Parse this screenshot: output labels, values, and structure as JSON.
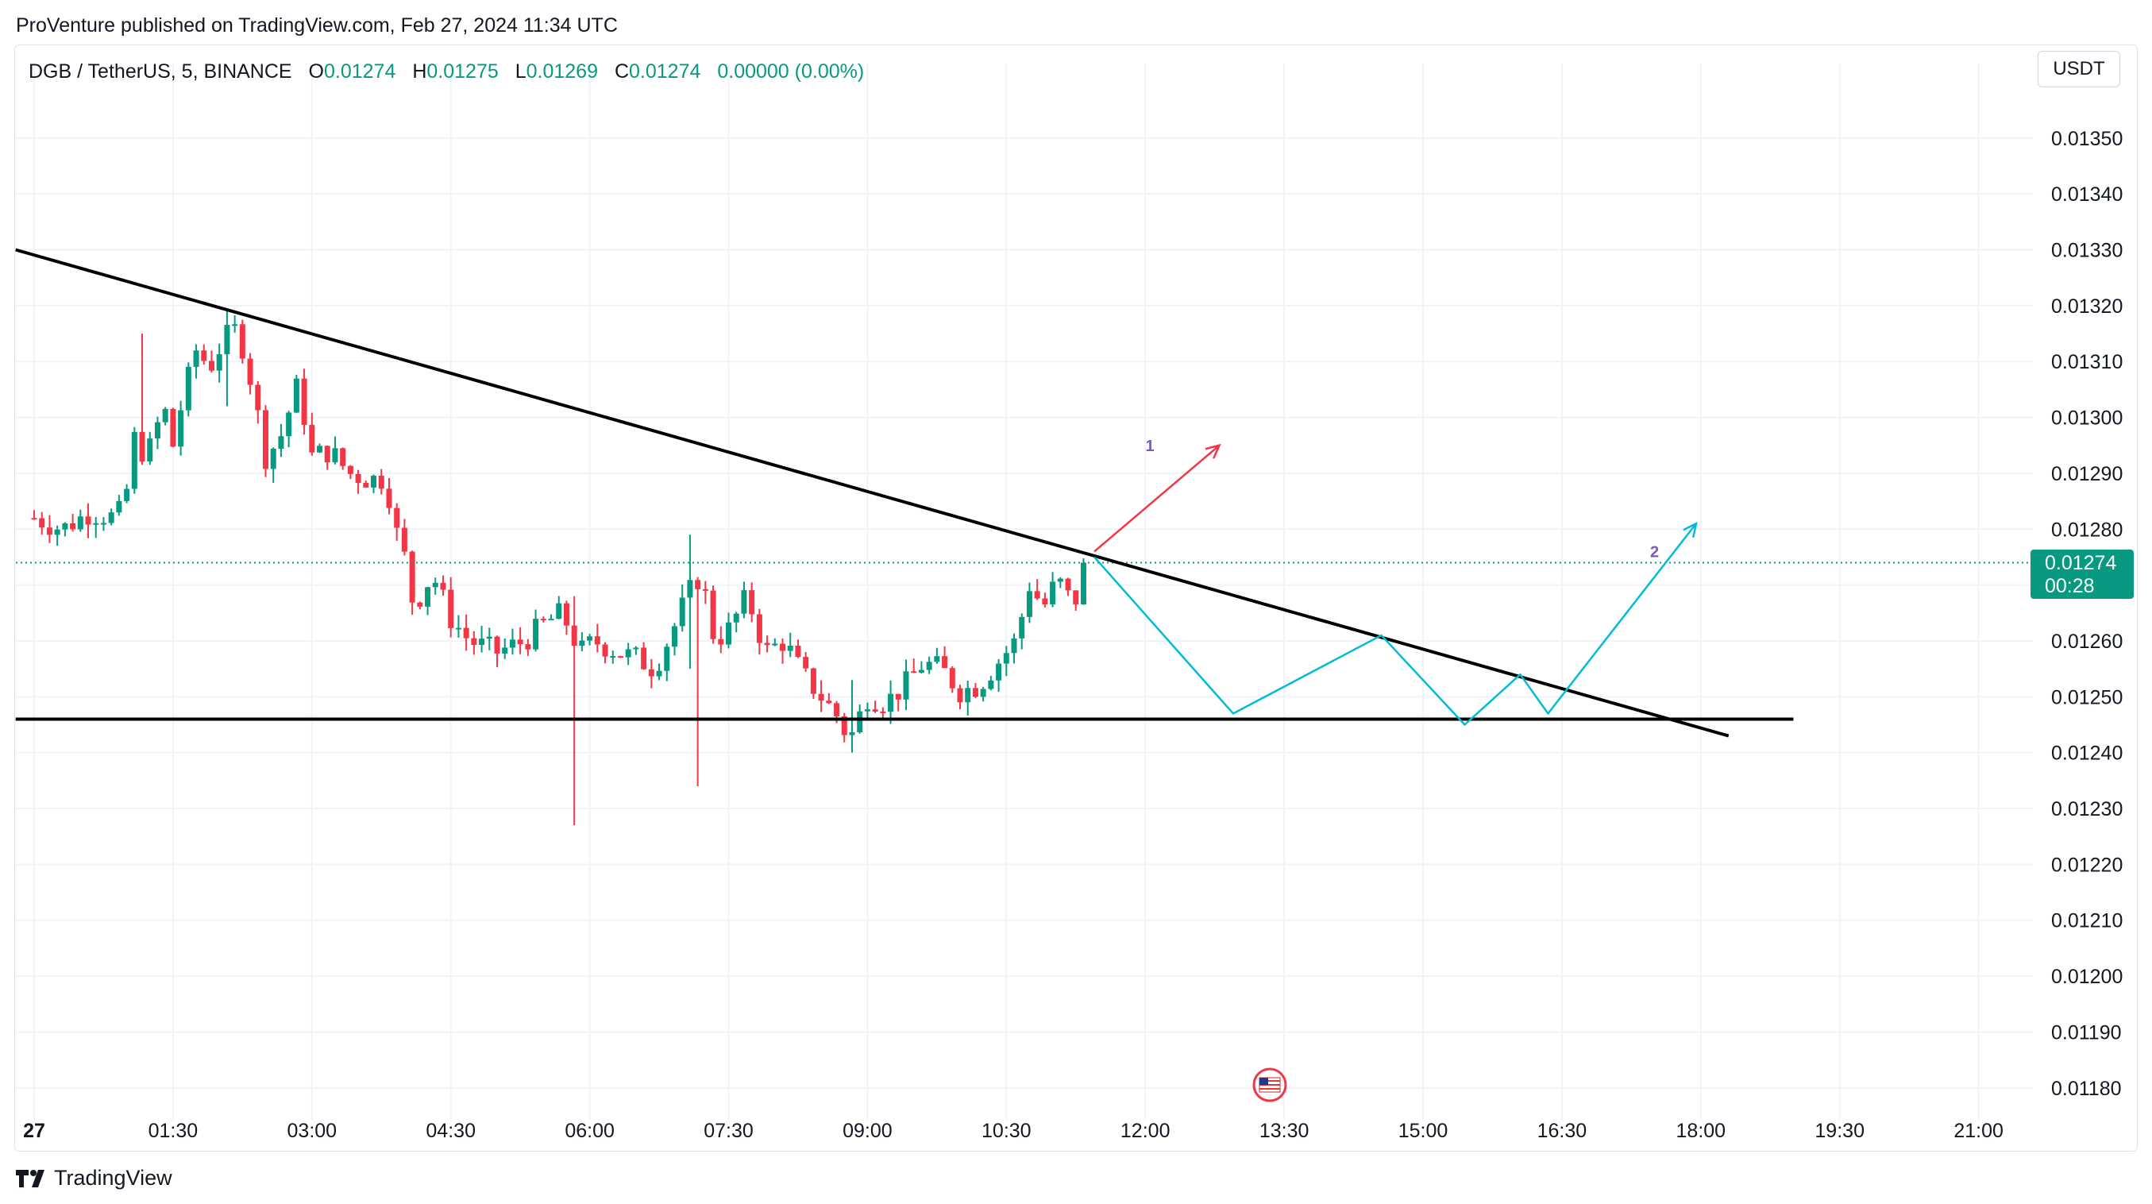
{
  "header": {
    "published": "ProVenture published on TradingView.com, Feb 27, 2024 11:34 UTC"
  },
  "legend": {
    "symbol": "DGB / TetherUS, 5, BINANCE",
    "o_label": "O",
    "o": "0.01274",
    "h_label": "H",
    "h": "0.01275",
    "l_label": "L",
    "l": "0.01269",
    "c_label": "C",
    "c": "0.01274",
    "change": "0.00000 (0.00%)"
  },
  "currency": "USDT",
  "last_price": {
    "price": "0.01274",
    "countdown": "00:28"
  },
  "brand": "TradingView",
  "colors": {
    "up": "#089981",
    "down": "#F23645",
    "line": "#000000",
    "projection": "#00BCD4",
    "arrow1": "#F23645",
    "label": "#7E57C2"
  },
  "chart_data": {
    "type": "candlestick",
    "title": "DGB / TetherUS, 5, BINANCE",
    "timeframe_minutes": 5,
    "ylim": [
      0.01174,
      0.01356
    ],
    "xlim_hours": [
      -0.2,
      22.1
    ],
    "y_ticks": [
      "0.01350",
      "0.01340",
      "0.01330",
      "0.01320",
      "0.01310",
      "0.01300",
      "0.01290",
      "0.01280",
      "0.01270",
      "0.01260",
      "0.01250",
      "0.01240",
      "0.01230",
      "0.01220",
      "0.01210",
      "0.01200",
      "0.01190",
      "0.01180"
    ],
    "x_ticks": [
      {
        "h": 0,
        "label": "27"
      },
      {
        "h": 1.5,
        "label": "01:30"
      },
      {
        "h": 3,
        "label": "03:00"
      },
      {
        "h": 4.5,
        "label": "04:30"
      },
      {
        "h": 6,
        "label": "06:00"
      },
      {
        "h": 7.5,
        "label": "07:30"
      },
      {
        "h": 9,
        "label": "09:00"
      },
      {
        "h": 10.5,
        "label": "10:30"
      },
      {
        "h": 12,
        "label": "12:00"
      },
      {
        "h": 13.5,
        "label": "13:30"
      },
      {
        "h": 15,
        "label": "15:00"
      },
      {
        "h": 16.5,
        "label": "16:30"
      },
      {
        "h": 18,
        "label": "18:00"
      },
      {
        "h": 19.5,
        "label": "19:30"
      },
      {
        "h": 21,
        "label": "21:00"
      }
    ],
    "close_path": [
      [
        0.0,
        0.01282
      ],
      [
        0.3,
        0.0128
      ],
      [
        0.6,
        0.01283
      ],
      [
        0.9,
        0.01282
      ],
      [
        1.0,
        0.01287
      ],
      [
        1.1,
        0.01298
      ],
      [
        1.2,
        0.01292
      ],
      [
        1.4,
        0.01302
      ],
      [
        1.5,
        0.01295
      ],
      [
        1.6,
        0.01303
      ],
      [
        1.75,
        0.01312
      ],
      [
        1.9,
        0.01309
      ],
      [
        2.05,
        0.01314
      ],
      [
        2.2,
        0.01316
      ],
      [
        2.35,
        0.01306
      ],
      [
        2.5,
        0.01293
      ],
      [
        2.65,
        0.01296
      ],
      [
        2.85,
        0.01306
      ],
      [
        3.0,
        0.01293
      ],
      [
        3.2,
        0.01294
      ],
      [
        3.4,
        0.0129
      ],
      [
        3.6,
        0.01289
      ],
      [
        3.8,
        0.01289
      ],
      [
        3.9,
        0.0128
      ],
      [
        4.0,
        0.01275
      ],
      [
        4.1,
        0.01266
      ],
      [
        4.3,
        0.01272
      ],
      [
        4.5,
        0.01264
      ],
      [
        4.7,
        0.0126
      ],
      [
        5.0,
        0.01258
      ],
      [
        5.3,
        0.0126
      ],
      [
        5.5,
        0.01263
      ],
      [
        5.7,
        0.01265
      ],
      [
        5.9,
        0.01258
      ],
      [
        6.05,
        0.0126
      ],
      [
        6.3,
        0.01258
      ],
      [
        6.5,
        0.01257
      ],
      [
        6.7,
        0.01255
      ],
      [
        6.9,
        0.01262
      ],
      [
        7.05,
        0.01268
      ],
      [
        7.2,
        0.01272
      ],
      [
        7.35,
        0.0126
      ],
      [
        7.5,
        0.01262
      ],
      [
        7.7,
        0.01268
      ],
      [
        7.9,
        0.01258
      ],
      [
        8.1,
        0.0126
      ],
      [
        8.3,
        0.01254
      ],
      [
        8.5,
        0.0125
      ],
      [
        8.7,
        0.01246
      ],
      [
        8.8,
        0.01242
      ],
      [
        9.0,
        0.0125
      ],
      [
        9.2,
        0.01249
      ],
      [
        9.4,
        0.01252
      ],
      [
        9.6,
        0.01256
      ],
      [
        9.8,
        0.01255
      ],
      [
        10.0,
        0.01251
      ],
      [
        10.2,
        0.01252
      ],
      [
        10.4,
        0.01256
      ],
      [
        10.6,
        0.0126
      ],
      [
        10.75,
        0.0127
      ],
      [
        10.9,
        0.01266
      ],
      [
        11.05,
        0.01271
      ],
      [
        11.2,
        0.01267
      ],
      [
        11.3,
        0.01268
      ],
      [
        11.4,
        0.01274
      ]
    ],
    "wick_extremes": [
      {
        "h": 1.17,
        "high": 0.01315,
        "low": 0.01292
      },
      {
        "h": 2.05,
        "high": 0.01319,
        "low": 0.01302
      },
      {
        "h": 5.87,
        "high": 0.01268,
        "low": 0.01227
      },
      {
        "h": 7.12,
        "high": 0.01279,
        "low": 0.01255
      },
      {
        "h": 7.18,
        "high": 0.0127,
        "low": 0.01234
      },
      {
        "h": 8.8,
        "high": 0.01253,
        "low": 0.0124
      }
    ],
    "last_price": 0.01274,
    "drawings": {
      "resistance_trendline": [
        [
          -0.2,
          0.0133
        ],
        [
          18.3,
          0.01243
        ]
      ],
      "support_line": [
        [
          -0.2,
          0.01246
        ],
        [
          19.0,
          0.01246
        ]
      ],
      "projection_path_2": [
        [
          11.45,
          0.01275
        ],
        [
          12.95,
          0.01247
        ],
        [
          14.55,
          0.01261
        ],
        [
          15.45,
          0.01245
        ],
        [
          16.05,
          0.01254
        ],
        [
          16.35,
          0.01247
        ],
        [
          17.95,
          0.01281
        ]
      ],
      "arrow_1": [
        [
          11.45,
          0.01276
        ],
        [
          12.8,
          0.01295
        ]
      ],
      "labels": [
        {
          "text": "1",
          "h": 12.05,
          "y": 0.01294
        },
        {
          "text": "2",
          "h": 17.5,
          "y": 0.01275
        }
      ]
    }
  }
}
